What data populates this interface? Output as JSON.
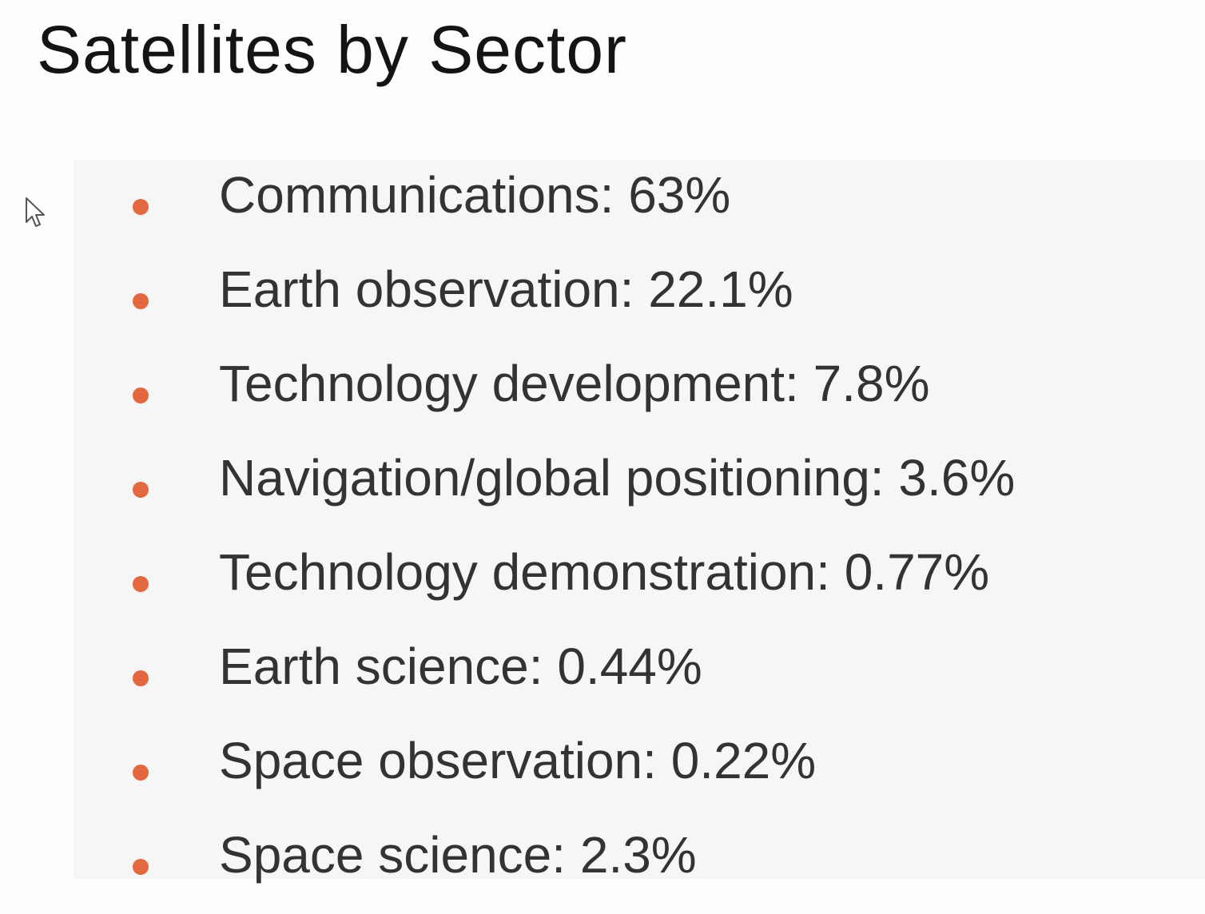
{
  "header": {
    "title": "Satellites by Sector"
  },
  "list": {
    "items": [
      "Communications: 63%",
      "Earth observation: 22.1%",
      "Technology development: 7.8%",
      "Navigation/global positioning: 3.6%",
      "Technology demonstration: 0.77%",
      "Earth science: 0.44%",
      "Space observation: 0.22%",
      "Space science: 2.3%"
    ]
  }
}
